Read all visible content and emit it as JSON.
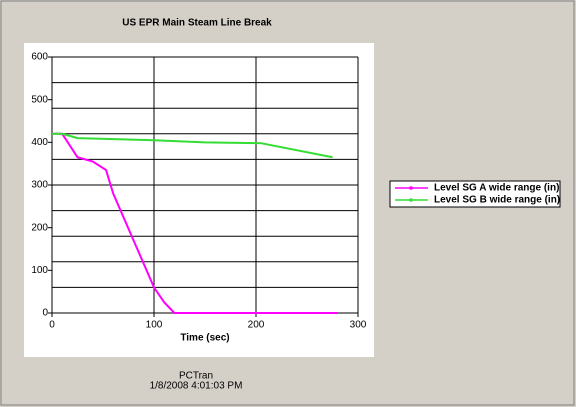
{
  "chart_data": {
    "type": "line",
    "title": "US EPR Main Steam Line Break",
    "xlabel": "Time (sec)",
    "footer": [
      "PCTran",
      "1/8/2008 4:01:03 PM"
    ],
    "series": [
      {
        "name": "Level SG A wide range (in)",
        "color": "#ff00ff",
        "x": [
          0,
          10,
          25,
          40,
          53,
          60,
          80,
          100,
          110,
          120,
          280
        ],
        "values": [
          420,
          420,
          365,
          355,
          335,
          280,
          170,
          60,
          25,
          0,
          0
        ]
      },
      {
        "name": "Level SG B wide range (in)",
        "color": "#33dd33",
        "x": [
          0,
          10,
          25,
          100,
          150,
          205,
          275
        ],
        "values": [
          420,
          420,
          410,
          405,
          400,
          398,
          365
        ]
      }
    ],
    "xlim": [
      0,
      300
    ],
    "xticks": [
      0,
      100,
      200,
      300
    ],
    "ylim": [
      0,
      600
    ],
    "yticks": [
      0,
      100,
      200,
      300,
      400,
      500,
      600
    ],
    "ygrid": [
      60,
      120,
      180,
      240,
      300,
      360,
      420,
      480,
      540,
      600
    ],
    "grid": true,
    "legend": "right"
  }
}
